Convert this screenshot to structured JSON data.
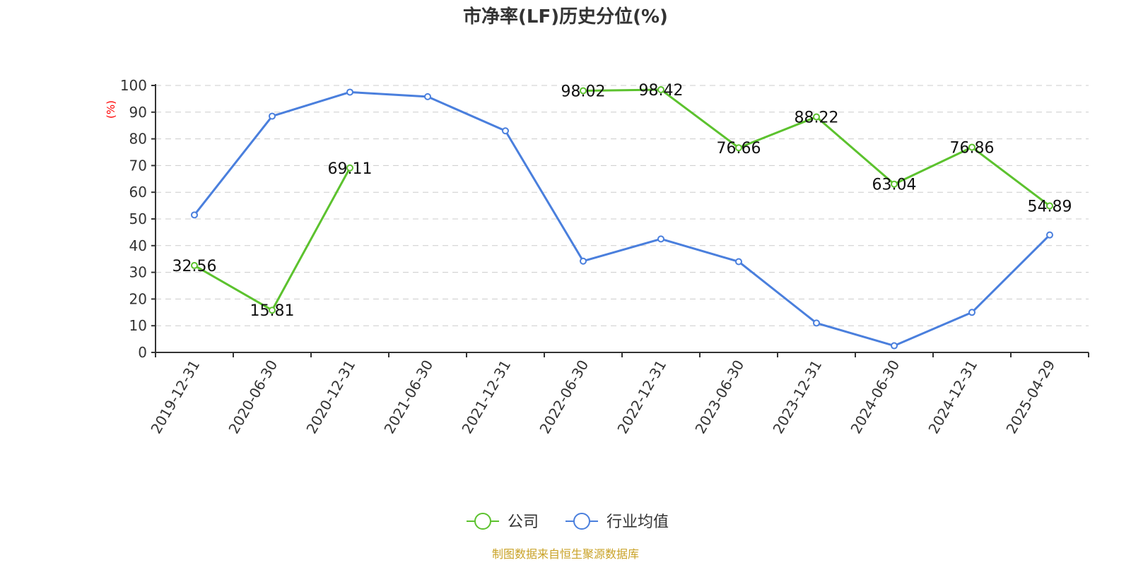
{
  "chart_data": {
    "type": "line",
    "title": "市净率(LF)历史分位(%)",
    "ylabel": "(%)",
    "ylim": [
      0,
      100
    ],
    "yticks": [
      0,
      10,
      20,
      30,
      40,
      50,
      60,
      70,
      80,
      90,
      100
    ],
    "grid": true,
    "legend_position": "bottom",
    "categories": [
      "2019-12-31",
      "2020-06-30",
      "2020-12-31",
      "2021-06-30",
      "2021-12-31",
      "2022-06-30",
      "2022-12-31",
      "2023-06-30",
      "2023-12-31",
      "2024-06-30",
      "2024-12-31",
      "2025-04-29"
    ],
    "series": [
      {
        "name": "公司",
        "color": "#5cc22e",
        "values": [
          32.56,
          15.81,
          69.11,
          null,
          null,
          98.02,
          98.42,
          76.66,
          88.22,
          63.04,
          76.86,
          54.89
        ],
        "show_labels": true
      },
      {
        "name": "行业均值",
        "color": "#4a7fdd",
        "values": [
          51.5,
          88.5,
          97.5,
          95.8,
          83.0,
          34.2,
          42.5,
          34.0,
          11.0,
          2.5,
          15.0,
          44.0
        ],
        "show_labels": false
      }
    ]
  },
  "source_text": "制图数据来自恒生聚源数据库"
}
